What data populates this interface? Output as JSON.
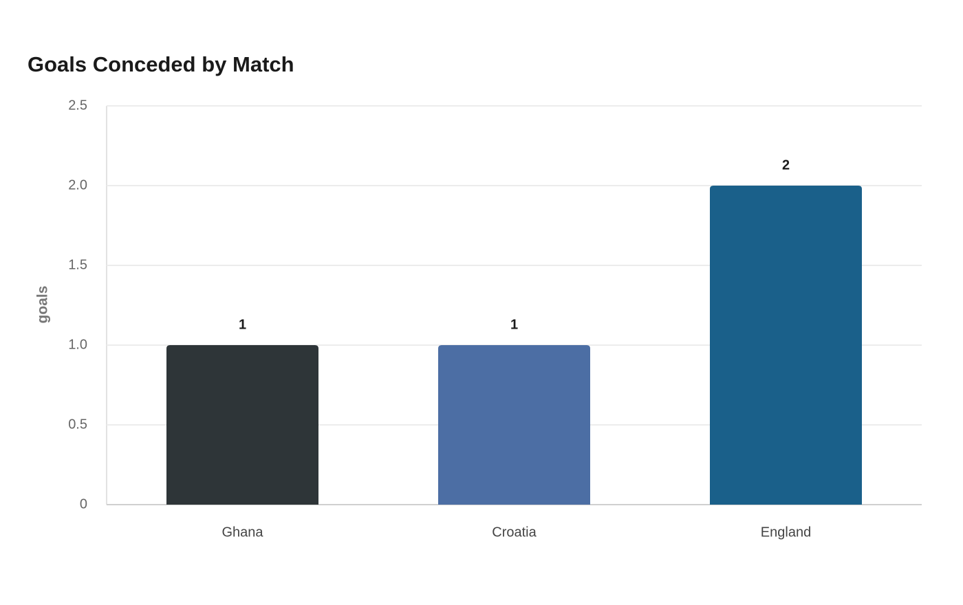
{
  "chart_data": {
    "type": "bar",
    "title": "Goals Conceded by Match",
    "y_label": "goals",
    "categories": [
      "Ghana",
      "Croatia",
      "England"
    ],
    "values": [
      1,
      1,
      2
    ],
    "colors": [
      "#2e3538",
      "#4c6ea4",
      "#1a608a"
    ],
    "ylim": [
      0,
      2.5
    ],
    "yticks": [
      0,
      0.5,
      {
        "value": 1,
        "label": "1.0"
      },
      1.5,
      {
        "value": 2,
        "label": "2.0"
      },
      2.5
    ],
    "grid": true
  }
}
